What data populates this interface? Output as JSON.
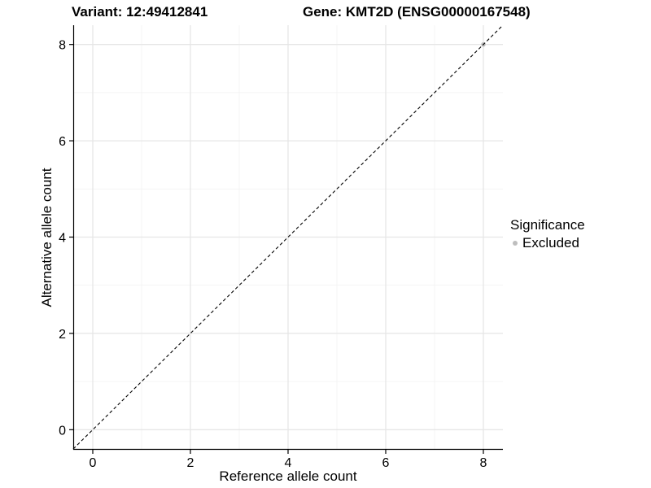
{
  "header": {
    "variant_title": "Variant: 12:49412841",
    "gene_title": "Gene: KMT2D (ENSG00000167548)"
  },
  "chart_data": {
    "type": "scatter",
    "x": {
      "label": "Reference allele count",
      "ticks": [
        0,
        2,
        4,
        6,
        8
      ],
      "minor_ticks": [
        1,
        3,
        5,
        7
      ],
      "range": [
        -0.4,
        8.4
      ]
    },
    "y": {
      "label": "Alternative allele count",
      "ticks": [
        0,
        2,
        4,
        6,
        8
      ],
      "minor_ticks": [
        1,
        3,
        5,
        7
      ],
      "range": [
        -0.4,
        8.4
      ]
    },
    "grid": true,
    "series": [
      {
        "name": "Excluded",
        "color": "#bebebe",
        "points": [
          [
            8,
            8
          ]
        ]
      }
    ],
    "reference_line": {
      "name": "identity-line",
      "style": "dashed",
      "color": "#000000",
      "from": [
        -0.4,
        -0.4
      ],
      "to": [
        8.4,
        8.4
      ]
    },
    "legend": {
      "title": "Significance",
      "position": "right",
      "items": [
        {
          "label": "Excluded",
          "color": "#bebebe"
        }
      ]
    }
  },
  "colors": {
    "background": "#ffffff",
    "grid_major": "#e6e6e6",
    "grid_minor": "#f2f2f2",
    "axis": "#000000",
    "text": "#000000",
    "point": "#bebebe"
  }
}
